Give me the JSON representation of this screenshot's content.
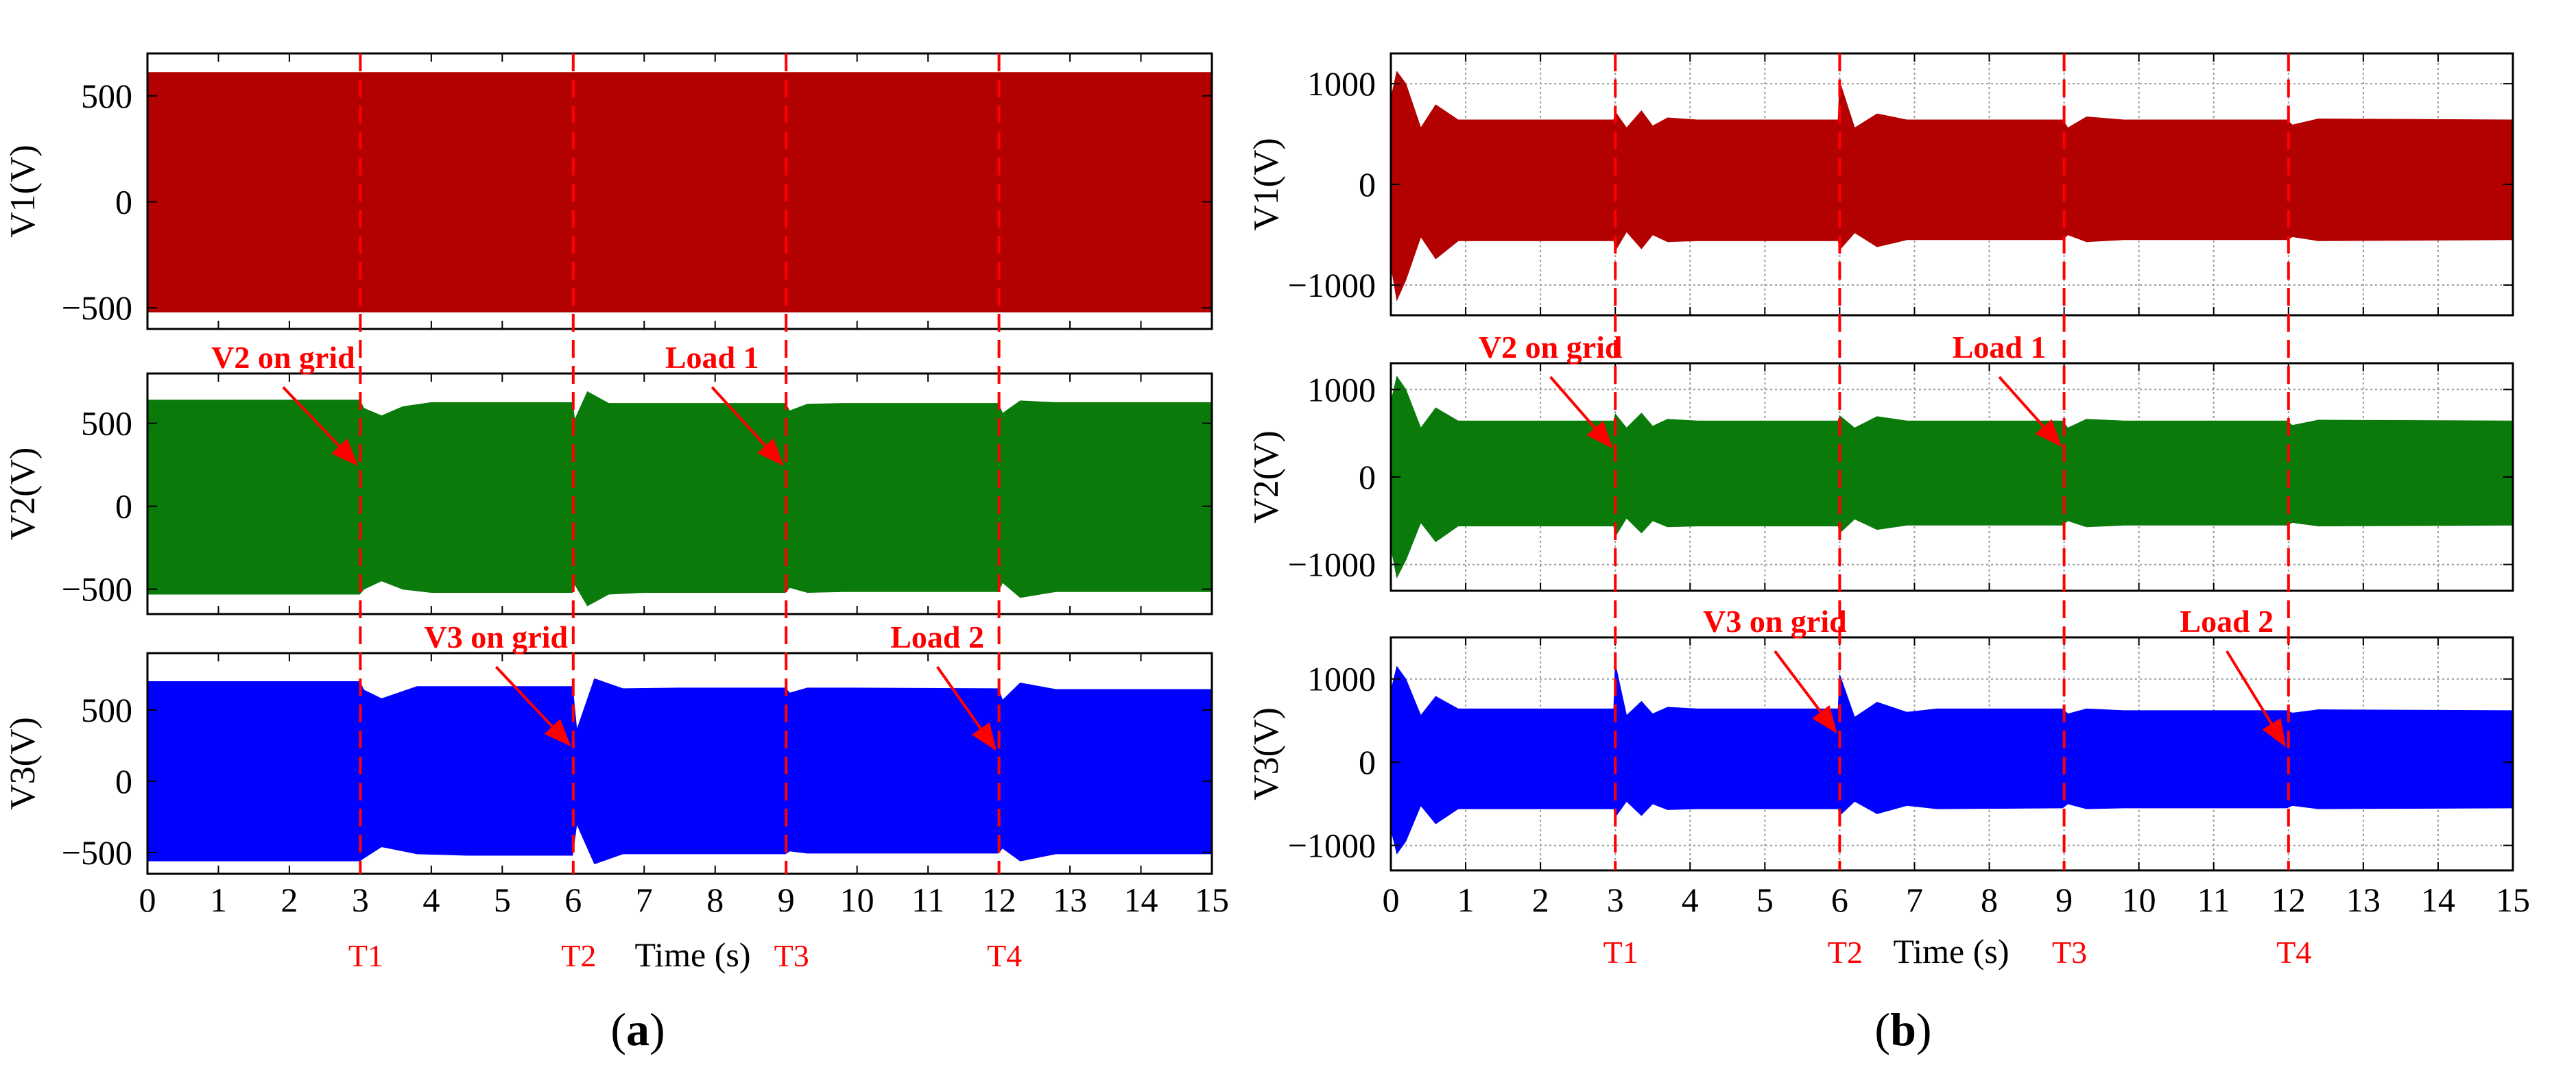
{
  "figure": {
    "panels": [
      {
        "id": "a",
        "label": "(a)"
      },
      {
        "id": "b",
        "label": "(b)"
      }
    ]
  },
  "chart_data": [
    {
      "panel": "a",
      "type": "line",
      "caption": "(a)",
      "xlabel": "Time (s)",
      "xlim": [
        0,
        15
      ],
      "xticks": [
        0,
        1,
        2,
        3,
        4,
        5,
        6,
        7,
        8,
        9,
        10,
        11,
        12,
        13,
        14,
        15
      ],
      "grid": false,
      "events": [
        {
          "name": "T1",
          "t": 3
        },
        {
          "name": "T2",
          "t": 6
        },
        {
          "name": "T3",
          "t": 9
        },
        {
          "name": "T4",
          "t": 12
        }
      ],
      "subplots": [
        {
          "ylabel": "V1(V)",
          "ylim": [
            -600,
            700
          ],
          "yticks": [
            -500,
            0,
            500
          ],
          "color": "#b30000",
          "envelope": {
            "t": [
              0,
              15
            ],
            "upper": [
              610,
              610
            ],
            "lower": [
              -520,
              -520
            ]
          },
          "annotations": []
        },
        {
          "ylabel": "V2(V)",
          "ylim": [
            -650,
            800
          ],
          "yticks": [
            -500,
            0,
            500
          ],
          "color": "#0a7a0a",
          "envelope": {
            "t": [
              0,
              2.99,
              3.05,
              3.3,
              3.6,
              4,
              5.99,
              6.02,
              6.2,
              6.5,
              7,
              8.99,
              9.05,
              9.3,
              9.8,
              11.99,
              12.05,
              12.3,
              12.8,
              15
            ],
            "upper": [
              640,
              640,
              590,
              545,
              600,
              625,
              625,
              520,
              690,
              620,
              620,
              620,
              575,
              615,
              620,
              620,
              560,
              635,
              625,
              625
            ],
            "lower": [
              -530,
              -530,
              -500,
              -450,
              -500,
              -520,
              -520,
              -470,
              -600,
              -530,
              -520,
              -520,
              -490,
              -520,
              -515,
              -515,
              -460,
              -550,
              -515,
              -515
            ]
          },
          "annotations": [
            {
              "text": "V2 on grid",
              "arrow_to": [
                3,
                230
              ]
            },
            {
              "text": "Load 1",
              "arrow_to": [
                9,
                230
              ]
            }
          ]
        },
        {
          "ylabel": "V3(V)",
          "ylim": [
            -650,
            900
          ],
          "yticks": [
            -500,
            0,
            500
          ],
          "color": "#0000ff",
          "envelope": {
            "t": [
              0,
              2.99,
              3.05,
              3.3,
              3.8,
              4.5,
              5.99,
              6.05,
              6.3,
              6.7,
              7.5,
              8.99,
              9.05,
              9.3,
              10,
              11.99,
              12.05,
              12.3,
              12.8,
              15
            ],
            "upper": [
              700,
              700,
              640,
              580,
              665,
              665,
              665,
              360,
              720,
              650,
              655,
              655,
              620,
              655,
              655,
              650,
              570,
              690,
              645,
              645
            ],
            "lower": [
              -560,
              -560,
              -540,
              -460,
              -510,
              -520,
              -520,
              -300,
              -580,
              -510,
              -510,
              -510,
              -490,
              -505,
              -505,
              -505,
              -470,
              -560,
              -510,
              -510
            ]
          },
          "annotations": [
            {
              "text": "V3 on grid",
              "arrow_to": [
                6,
                230
              ]
            },
            {
              "text": "Load 2",
              "arrow_to": [
                12,
                200
              ]
            }
          ]
        }
      ]
    },
    {
      "panel": "b",
      "type": "line",
      "caption": "(b)",
      "xlabel": "Time (s)",
      "xlim": [
        0,
        15
      ],
      "xticks": [
        0,
        1,
        2,
        3,
        4,
        5,
        6,
        7,
        8,
        9,
        10,
        11,
        12,
        13,
        14,
        15
      ],
      "grid": true,
      "events": [
        {
          "name": "T1",
          "t": 3
        },
        {
          "name": "T2",
          "t": 6
        },
        {
          "name": "T3",
          "t": 9
        },
        {
          "name": "T4",
          "t": 12
        }
      ],
      "subplots": [
        {
          "ylabel": "V1(V)",
          "ylim": [
            -1300,
            1300
          ],
          "yticks": [
            -1000,
            0,
            1000
          ],
          "color": "#b30000",
          "envelope": {
            "t": [
              0,
              0.08,
              0.2,
              0.4,
              0.6,
              0.9,
              2.98,
              3.0,
              3.15,
              3.35,
              3.5,
              3.7,
              4.1,
              5.98,
              6.0,
              6.2,
              6.5,
              6.9,
              8.98,
              9.05,
              9.3,
              9.8,
              11.98,
              12.05,
              12.4,
              15
            ],
            "upper": [
              850,
              1120,
              1000,
              560,
              790,
              640,
              640,
              720,
              560,
              730,
              580,
              660,
              640,
              640,
              1020,
              560,
              700,
              640,
              640,
              560,
              670,
              640,
              640,
              590,
              650,
              640
            ],
            "lower": [
              -800,
              -1150,
              -950,
              -520,
              -740,
              -560,
              -560,
              -660,
              -470,
              -640,
              -500,
              -570,
              -560,
              -560,
              -650,
              -480,
              -620,
              -550,
              -550,
              -500,
              -570,
              -550,
              -550,
              -520,
              -560,
              -550
            ]
          },
          "annotations": []
        },
        {
          "ylabel": "V2(V)",
          "ylim": [
            -1300,
            1300
          ],
          "yticks": [
            -1000,
            0,
            1000
          ],
          "color": "#0a7a0a",
          "envelope": {
            "t": [
              0,
              0.08,
              0.2,
              0.4,
              0.6,
              0.9,
              2.98,
              3.0,
              3.15,
              3.35,
              3.5,
              3.7,
              4.1,
              5.98,
              6.0,
              6.2,
              6.5,
              6.9,
              8.98,
              9.05,
              9.3,
              9.8,
              11.98,
              12.05,
              12.4,
              15
            ],
            "upper": [
              850,
              1150,
              1000,
              560,
              790,
              640,
              640,
              720,
              560,
              730,
              580,
              660,
              640,
              640,
              700,
              560,
              690,
              640,
              640,
              560,
              660,
              640,
              640,
              590,
              650,
              640
            ],
            "lower": [
              -800,
              -1150,
              -950,
              -520,
              -740,
              -560,
              -560,
              -680,
              -470,
              -640,
              -500,
              -570,
              -560,
              -560,
              -640,
              -480,
              -600,
              -550,
              -550,
              -500,
              -570,
              -550,
              -550,
              -520,
              -560,
              -550
            ]
          },
          "annotations": [
            {
              "text": "V2 on grid",
              "arrow_to": [
                3,
                300
              ]
            },
            {
              "text": "Load 1",
              "arrow_to": [
                9,
                320
              ]
            }
          ]
        },
        {
          "ylabel": "V3(V)",
          "ylim": [
            -1300,
            1500
          ],
          "yticks": [
            -1000,
            0,
            1000
          ],
          "color": "#0000ff",
          "envelope": {
            "t": [
              0,
              0.08,
              0.2,
              0.4,
              0.6,
              0.9,
              2.98,
              3.0,
              3.15,
              3.35,
              3.5,
              3.7,
              4.1,
              5.98,
              6.0,
              6.2,
              6.5,
              6.9,
              7.3,
              8.98,
              9.05,
              9.3,
              9.8,
              11.98,
              12.05,
              12.4,
              15
            ],
            "upper": [
              850,
              1150,
              1000,
              560,
              790,
              640,
              640,
              1180,
              560,
              730,
              580,
              660,
              640,
              640,
              1050,
              540,
              720,
              600,
              640,
              640,
              580,
              640,
              620,
              620,
              590,
              630,
              620
            ],
            "lower": [
              -800,
              -1100,
              -950,
              -520,
              -740,
              -560,
              -560,
              -660,
              -470,
              -640,
              -500,
              -570,
              -560,
              -560,
              -640,
              -470,
              -620,
              -520,
              -560,
              -550,
              -500,
              -560,
              -550,
              -550,
              -520,
              -560,
              -550
            ]
          },
          "annotations": [
            {
              "text": "V3 on grid",
              "arrow_to": [
                6,
                320
              ]
            },
            {
              "text": "Load 2",
              "arrow_to": [
                12,
                160
              ]
            }
          ]
        }
      ]
    }
  ]
}
